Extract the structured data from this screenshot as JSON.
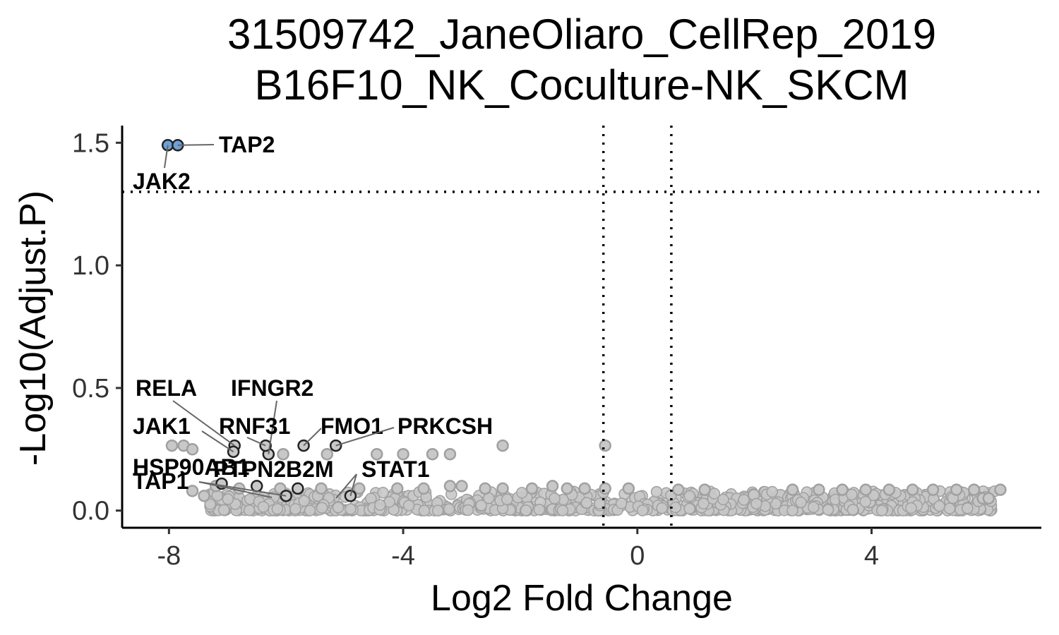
{
  "chart_data": {
    "type": "scatter",
    "title": [
      "31509742_JaneOliaro_CellRep_2019",
      "B16F10_NK_Coculture-NK_SKCM"
    ],
    "xlabel": "Log2 Fold Change",
    "ylabel": "-Log10(Adjust.P)",
    "xlim": [
      -8.8,
      6.9
    ],
    "ylim": [
      -0.07,
      1.57
    ],
    "xticks": [
      -8,
      -4,
      0,
      4
    ],
    "xtick_labels": [
      "-8",
      "-4",
      "0",
      "4"
    ],
    "yticks": [
      0.0,
      0.5,
      1.0,
      1.5
    ],
    "ytick_labels": [
      "0.0",
      "0.5",
      "1.0",
      "1.5"
    ],
    "grid": false,
    "thresholds": {
      "fold_change": [
        -0.58,
        0.58
      ],
      "neg_log10_p": 1.3
    },
    "colors": {
      "significant": "#6f9fd8",
      "background": "#c8c8c8",
      "background_edge": "#a0a0a0",
      "highlight_edge": "#222222",
      "threshold_line": "#000000"
    },
    "highlighted_points": [
      {
        "gene": "JAK2",
        "x": -8.02,
        "y": 1.49,
        "significant": true
      },
      {
        "gene": "TAP2",
        "x": -7.85,
        "y": 1.49,
        "significant": true
      },
      {
        "gene": "RELA",
        "x": -6.88,
        "y": 0.265,
        "significant": false
      },
      {
        "gene": "JAK1",
        "x": -6.9,
        "y": 0.24,
        "significant": false
      },
      {
        "gene": "IFNGR2",
        "x": -6.3,
        "y": 0.23,
        "significant": false
      },
      {
        "gene": "RNF31",
        "x": -6.35,
        "y": 0.265,
        "significant": false
      },
      {
        "gene": "FMO1",
        "x": -5.7,
        "y": 0.265,
        "significant": false
      },
      {
        "gene": "PRKCSH",
        "x": -5.15,
        "y": 0.265,
        "significant": false
      },
      {
        "gene": "HSP90AB1",
        "x": -7.1,
        "y": 0.11,
        "significant": false
      },
      {
        "gene": "PTPN2",
        "x": -6.5,
        "y": 0.1,
        "significant": false
      },
      {
        "gene": "B2M",
        "x": -5.8,
        "y": 0.09,
        "significant": false
      },
      {
        "gene": "STAT1",
        "x": -4.9,
        "y": 0.06,
        "significant": false
      },
      {
        "gene": "TAP1",
        "x": -6.0,
        "y": 0.06,
        "significant": false
      }
    ],
    "background_points": [
      {
        "x": -7.95,
        "y": 0.265
      },
      {
        "x": -7.75,
        "y": 0.265
      },
      {
        "x": -7.6,
        "y": 0.25
      },
      {
        "x": -6.05,
        "y": 0.23
      },
      {
        "x": -5.3,
        "y": 0.23
      },
      {
        "x": -4.45,
        "y": 0.23
      },
      {
        "x": -4.0,
        "y": 0.23
      },
      {
        "x": -3.5,
        "y": 0.23
      },
      {
        "x": -3.2,
        "y": 0.23
      },
      {
        "x": -2.3,
        "y": 0.265
      },
      {
        "x": -0.55,
        "y": 0.265
      },
      {
        "x": -7.6,
        "y": 0.08
      },
      {
        "x": -7.4,
        "y": 0.06
      },
      {
        "x": -7.2,
        "y": 0.1
      },
      {
        "x": -6.8,
        "y": 0.09
      },
      {
        "x": -6.1,
        "y": 0.09
      },
      {
        "x": -5.4,
        "y": 0.09
      },
      {
        "x": -4.75,
        "y": 0.09
      },
      {
        "x": -4.1,
        "y": 0.09
      },
      {
        "x": -3.65,
        "y": 0.09
      },
      {
        "x": -3.2,
        "y": 0.1
      },
      {
        "x": -3.0,
        "y": 0.1
      },
      {
        "x": -2.6,
        "y": 0.09
      },
      {
        "x": -2.3,
        "y": 0.09
      },
      {
        "x": -1.8,
        "y": 0.09
      },
      {
        "x": -1.45,
        "y": 0.1
      },
      {
        "x": -1.2,
        "y": 0.09
      },
      {
        "x": -0.9,
        "y": 0.09
      },
      {
        "x": -0.55,
        "y": 0.09
      },
      {
        "x": -0.15,
        "y": 0.09
      },
      {
        "x": 0.7,
        "y": 0.085
      },
      {
        "x": 1.15,
        "y": 0.085
      },
      {
        "x": 2.65,
        "y": 0.085
      },
      {
        "x": 3.1,
        "y": 0.085
      },
      {
        "x": 3.5,
        "y": 0.085
      },
      {
        "x": 3.9,
        "y": 0.085
      },
      {
        "x": 4.3,
        "y": 0.085
      },
      {
        "x": 4.7,
        "y": 0.085
      },
      {
        "x": 5.05,
        "y": 0.085
      },
      {
        "x": 5.45,
        "y": 0.085
      },
      {
        "x": 5.75,
        "y": 0.085
      },
      {
        "x": 6.2,
        "y": 0.085
      },
      {
        "x": 5.9,
        "y": 0.05
      },
      {
        "x": 6.0,
        "y": 0.05
      }
    ],
    "dense_cloud": {
      "x_range": [
        -7.3,
        6.1
      ],
      "y_range": [
        0.0,
        0.08
      ]
    }
  }
}
